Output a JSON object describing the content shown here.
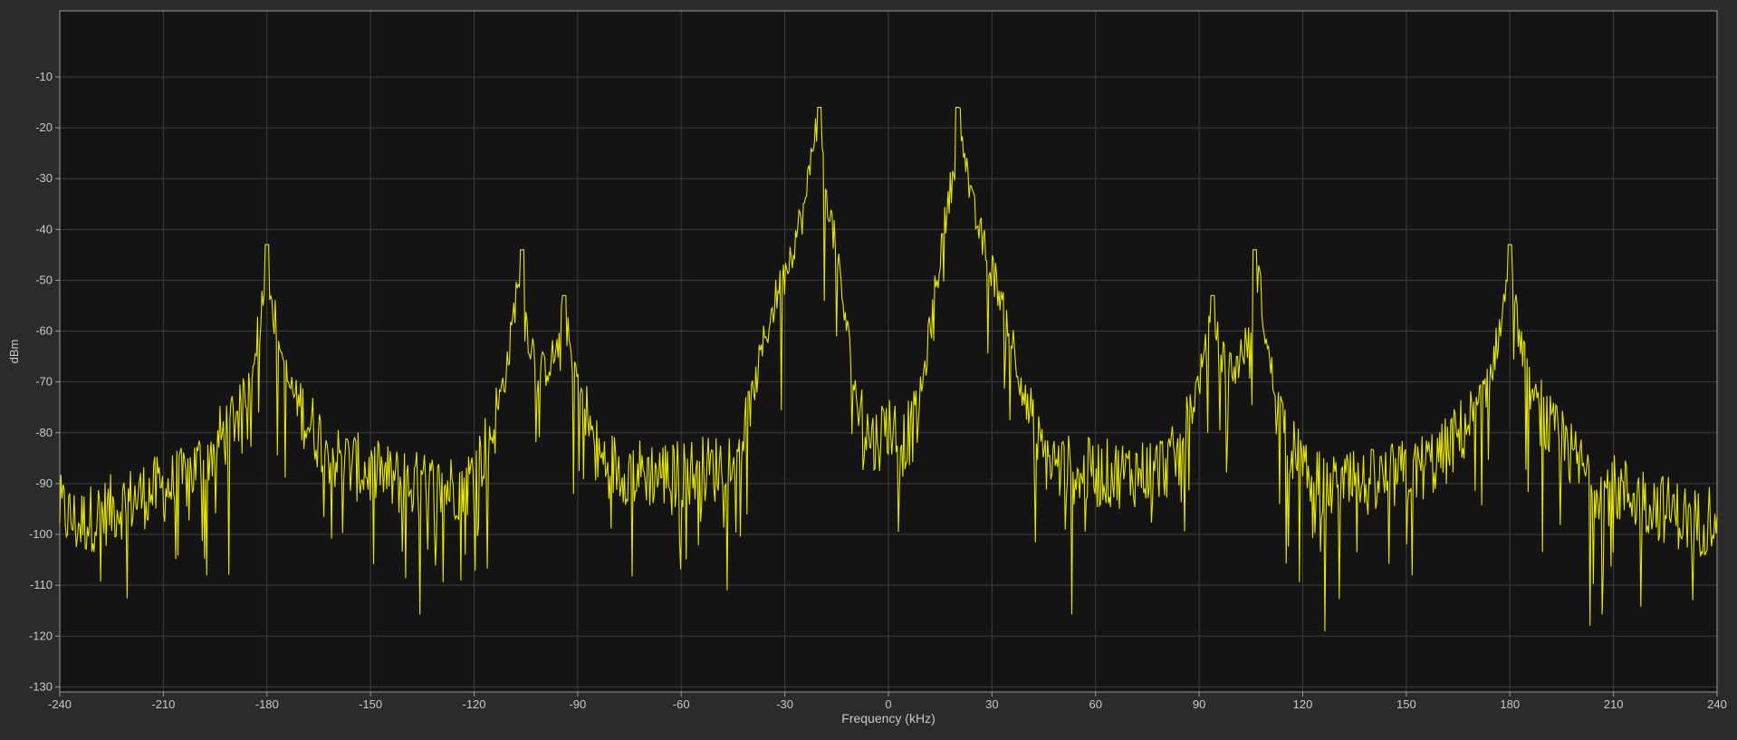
{
  "colors": {
    "background": "#2b2b2b",
    "plot_background": "#141414",
    "grid": "#3d3d3d",
    "axis": "#9a9a9a",
    "text": "#c8c8c8",
    "trace": "#e6e600"
  },
  "chart_data": {
    "type": "line",
    "title": "",
    "xlabel": "Frequency (kHz)",
    "ylabel": "dBm",
    "xlim": [
      -240,
      240
    ],
    "ylim": [
      -131,
      3
    ],
    "xticks": [
      -240,
      -210,
      -180,
      -150,
      -120,
      -90,
      -60,
      -30,
      0,
      30,
      60,
      90,
      120,
      150,
      180,
      210,
      240
    ],
    "yticks": [
      -10,
      -20,
      -30,
      -40,
      -50,
      -60,
      -70,
      -80,
      -90,
      -100,
      -110,
      -120,
      -130
    ],
    "grid": true,
    "legend": "none",
    "series": [
      {
        "color": "#e6e600",
        "peaks": [
          {
            "x": -180,
            "y": -43
          },
          {
            "x": -106,
            "y": -44
          },
          {
            "x": -94,
            "y": -53
          },
          {
            "x": -20,
            "y": -16
          },
          {
            "x": 20,
            "y": -16
          },
          {
            "x": 94,
            "y": -53
          },
          {
            "x": 106,
            "y": -44
          },
          {
            "x": 180,
            "y": -43
          }
        ],
        "envelope": [
          [
            -240,
            -95
          ],
          [
            -235,
            -98
          ],
          [
            -225,
            -95
          ],
          [
            -215,
            -92
          ],
          [
            -205,
            -90
          ],
          [
            -198,
            -85
          ],
          [
            -192,
            -80
          ],
          [
            -186,
            -72
          ],
          [
            -182,
            -58
          ],
          [
            -180,
            -46
          ],
          [
            -178,
            -56
          ],
          [
            -174,
            -70
          ],
          [
            -168,
            -78
          ],
          [
            -160,
            -85
          ],
          [
            -150,
            -88
          ],
          [
            -140,
            -90
          ],
          [
            -130,
            -91
          ],
          [
            -122,
            -90
          ],
          [
            -118,
            -85
          ],
          [
            -114,
            -78
          ],
          [
            -110,
            -65
          ],
          [
            -107,
            -48
          ],
          [
            -104,
            -62
          ],
          [
            -100,
            -68
          ],
          [
            -96,
            -64
          ],
          [
            -94,
            -56
          ],
          [
            -92,
            -64
          ],
          [
            -88,
            -75
          ],
          [
            -84,
            -85
          ],
          [
            -78,
            -87
          ],
          [
            -70,
            -88
          ],
          [
            -60,
            -88
          ],
          [
            -50,
            -87
          ],
          [
            -44,
            -84
          ],
          [
            -40,
            -75
          ],
          [
            -36,
            -62
          ],
          [
            -32,
            -52
          ],
          [
            -28,
            -44
          ],
          [
            -24,
            -35
          ],
          [
            -21,
            -18
          ],
          [
            -18,
            -32
          ],
          [
            -15,
            -45
          ],
          [
            -12,
            -60
          ],
          [
            -10,
            -70
          ],
          [
            -8,
            -78
          ],
          [
            -4,
            -82
          ],
          [
            0,
            -78
          ],
          [
            4,
            -82
          ],
          [
            8,
            -78
          ],
          [
            10,
            -70
          ],
          [
            12,
            -60
          ],
          [
            15,
            -45
          ],
          [
            18,
            -32
          ],
          [
            21,
            -18
          ],
          [
            24,
            -35
          ],
          [
            28,
            -44
          ],
          [
            32,
            -52
          ],
          [
            36,
            -62
          ],
          [
            40,
            -75
          ],
          [
            44,
            -84
          ],
          [
            50,
            -87
          ],
          [
            60,
            -88
          ],
          [
            70,
            -88
          ],
          [
            78,
            -87
          ],
          [
            84,
            -85
          ],
          [
            88,
            -75
          ],
          [
            92,
            -64
          ],
          [
            94,
            -56
          ],
          [
            96,
            -64
          ],
          [
            100,
            -68
          ],
          [
            104,
            -62
          ],
          [
            107,
            -48
          ],
          [
            110,
            -65
          ],
          [
            114,
            -78
          ],
          [
            118,
            -85
          ],
          [
            122,
            -90
          ],
          [
            130,
            -91
          ],
          [
            140,
            -90
          ],
          [
            150,
            -88
          ],
          [
            160,
            -85
          ],
          [
            168,
            -78
          ],
          [
            174,
            -70
          ],
          [
            178,
            -56
          ],
          [
            180,
            -46
          ],
          [
            182,
            -58
          ],
          [
            186,
            -72
          ],
          [
            192,
            -80
          ],
          [
            198,
            -85
          ],
          [
            205,
            -90
          ],
          [
            215,
            -92
          ],
          [
            225,
            -95
          ],
          [
            235,
            -98
          ],
          [
            240,
            -95
          ]
        ]
      }
    ]
  }
}
